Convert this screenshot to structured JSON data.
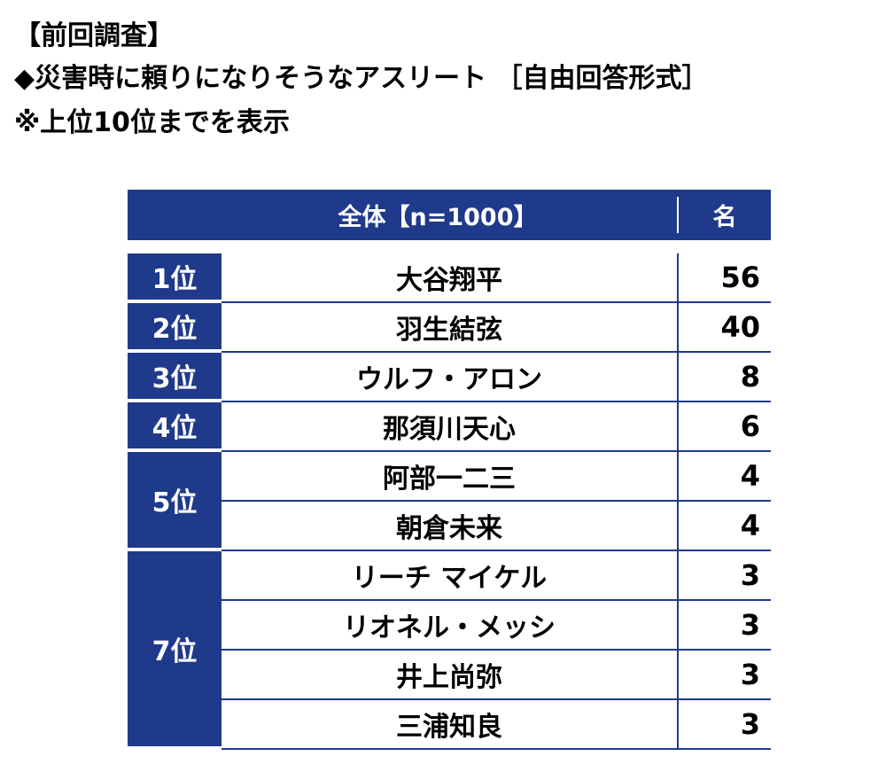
{
  "headings": {
    "line1": "【前回調査】",
    "line2": "◆災害時に頼りになりそうなアスリート ［自由回答形式］",
    "line3": "※上位10位までを表示"
  },
  "table": {
    "header_name": "全体【n=1000】",
    "header_count": "名",
    "ranks": [
      "1位",
      "2位",
      "3位",
      "4位",
      "5位",
      "7位"
    ],
    "rows": [
      {
        "name": "大谷翔平",
        "count": "56"
      },
      {
        "name": "羽生結弦",
        "count": "40"
      },
      {
        "name": "ウルフ・アロン",
        "count": "8"
      },
      {
        "name": "那須川天心",
        "count": "6"
      },
      {
        "name": "阿部一二三",
        "count": "4"
      },
      {
        "name": "朝倉未来",
        "count": "4"
      },
      {
        "name": "リーチ マイケル",
        "count": "3"
      },
      {
        "name": "リオネル・メッシ",
        "count": "3"
      },
      {
        "name": "井上尚弥",
        "count": "3"
      },
      {
        "name": "三浦知良",
        "count": "3"
      }
    ]
  },
  "colors": {
    "header_bg": "#1f3a8a",
    "text": "#000000"
  }
}
